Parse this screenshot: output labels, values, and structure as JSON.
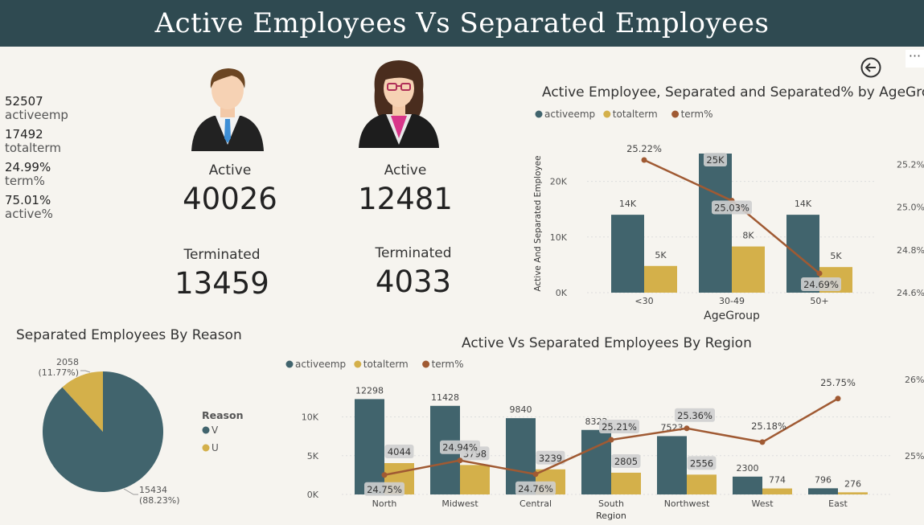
{
  "page": {
    "title": "Active Employees Vs Separated Employees"
  },
  "kpis": [
    {
      "value": "52507",
      "label": "activeemp"
    },
    {
      "value": "17492",
      "label": "totalterm"
    },
    {
      "value": "24.99%",
      "label": "term%"
    },
    {
      "value": "75.01%",
      "label": "active%"
    }
  ],
  "male_card": {
    "active_label": "Active",
    "active_value": "40026",
    "term_label": "Terminated",
    "term_value": "13459"
  },
  "female_card": {
    "active_label": "Active",
    "active_value": "12481",
    "term_label": "Terminated",
    "term_value": "4033"
  },
  "colors": {
    "header": "#2f4a51",
    "activeemp": "#41646d",
    "totalterm": "#d4b04a",
    "term": "#a05a33",
    "pie_u": "#d4b04a",
    "pie_v": "#41646d"
  },
  "chart_data": [
    {
      "type": "bar",
      "title": "Active Employee, Separated and Separated% by AgeGroup",
      "xlabel": "AgeGroup",
      "ylabel": "Active And Separated Employee",
      "categories": [
        "<30",
        "30-49",
        "50+"
      ],
      "legend": [
        "activeemp",
        "totalterm",
        "term%"
      ],
      "series": [
        {
          "name": "activeemp",
          "values": [
            14000,
            25000,
            14000
          ],
          "labels": [
            "14K",
            "25K",
            "14K"
          ]
        },
        {
          "name": "totalterm",
          "values": [
            4800,
            8300,
            4600
          ],
          "labels": [
            "5K",
            "8K",
            "5K"
          ]
        },
        {
          "name": "term%",
          "type": "line",
          "values": [
            25.22,
            25.03,
            24.69
          ],
          "labels": [
            "25.22%",
            "25.03%",
            "24.69%"
          ]
        }
      ],
      "ylim": [
        0,
        25000
      ],
      "yticks": [
        "0K",
        "10K",
        "20K"
      ],
      "y2lim": [
        24.6,
        25.25
      ],
      "y2ticks": [
        "24.6%",
        "24.8%",
        "25.0%",
        "25.2%"
      ]
    },
    {
      "type": "pie",
      "title": "Separated Employees By Reason",
      "legend_title": "Reason",
      "slices": [
        {
          "name": "V",
          "value": 15434,
          "label": "15434",
          "pct": "(88.23%)"
        },
        {
          "name": "U",
          "value": 2058,
          "label": "2058",
          "pct": "(11.77%)"
        }
      ]
    },
    {
      "type": "bar",
      "title": "Active Vs Separated Employees By Region",
      "xlabel": "Region",
      "categories": [
        "North",
        "Midwest",
        "Central",
        "South",
        "Northwest",
        "West",
        "East"
      ],
      "legend": [
        "activeemp",
        "totalterm",
        "term%"
      ],
      "series": [
        {
          "name": "activeemp",
          "values": [
            12298,
            11428,
            9840,
            8322,
            7523,
            2300,
            796
          ],
          "labels": [
            "12298",
            "11428",
            "9840",
            "8322",
            "7523",
            "2300",
            "796"
          ]
        },
        {
          "name": "totalterm",
          "values": [
            4044,
            3798,
            3239,
            2805,
            2556,
            774,
            276
          ],
          "labels": [
            "4044",
            "3798",
            "3239",
            "2805",
            "2556",
            "774",
            "276"
          ]
        },
        {
          "name": "term%",
          "type": "line",
          "values": [
            24.75,
            24.94,
            24.76,
            25.21,
            25.36,
            25.18,
            25.75
          ],
          "labels": [
            "24.75%",
            "24.94%",
            "24.76%",
            "25.21%",
            "25.36%",
            "25.18%",
            "25.75%"
          ]
        }
      ],
      "ylim": [
        0,
        14000
      ],
      "yticks": [
        "0K",
        "5K",
        "10K"
      ],
      "y2ticks": [
        "25%",
        "26%"
      ]
    }
  ]
}
